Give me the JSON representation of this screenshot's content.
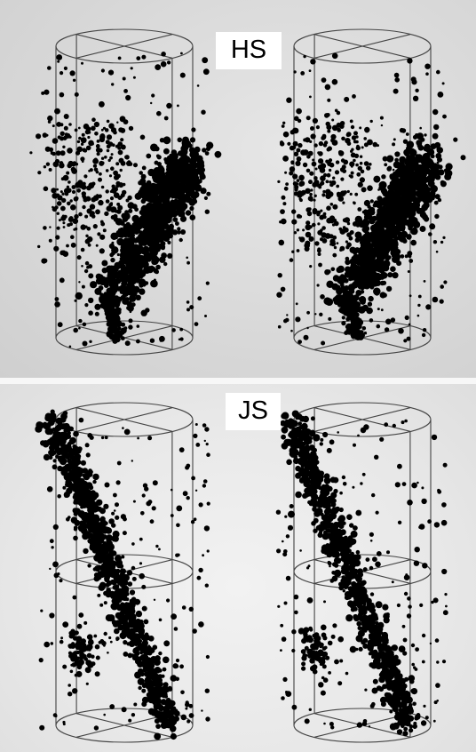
{
  "figure": {
    "top_panel_label": "HS",
    "bottom_panel_label": "JS",
    "background_color": "#dcdcdc",
    "point_color": "#000000",
    "frame_color": "#444444"
  }
}
